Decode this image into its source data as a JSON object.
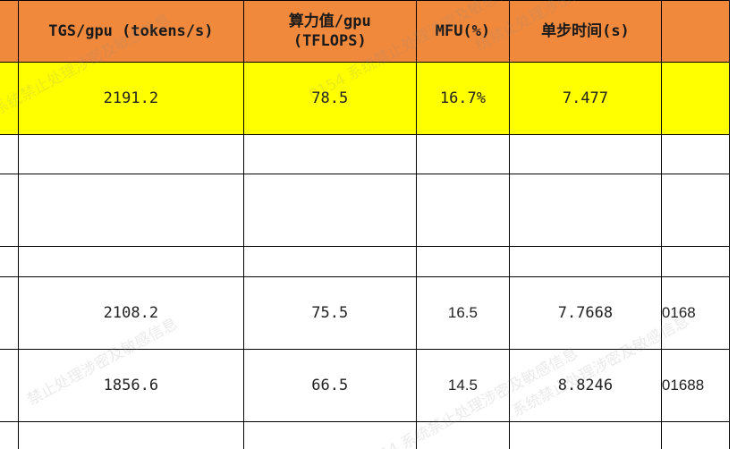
{
  "table": {
    "headers": [
      "",
      "TGS/gpu (tokens/s)",
      "算力值/gpu\n(TFLOPS)",
      "MFU(%)",
      "单步时间(s)",
      ""
    ],
    "highlight_row": [
      "",
      "2191.2",
      "78.5",
      "16.7%",
      "7.477",
      ""
    ],
    "data_rows": [
      [
        "",
        "2108.2",
        "75.5",
        "16.5",
        "7.7668",
        "0168"
      ],
      [
        "",
        "1856.6",
        "66.5",
        "14.5",
        "8.8246",
        "01688"
      ]
    ]
  },
  "watermark": {
    "lines": [
      "系统禁止处理涉密及敏感信息",
      "0154 系统禁止处理涉密及敏感信息",
      "统禁止处理涉密及敏感信息",
      "禁止处理涉密及敏感信息",
      "154 系统禁止处理涉密及敏感信息",
      "系统禁止处理涉密及敏感信息"
    ]
  }
}
